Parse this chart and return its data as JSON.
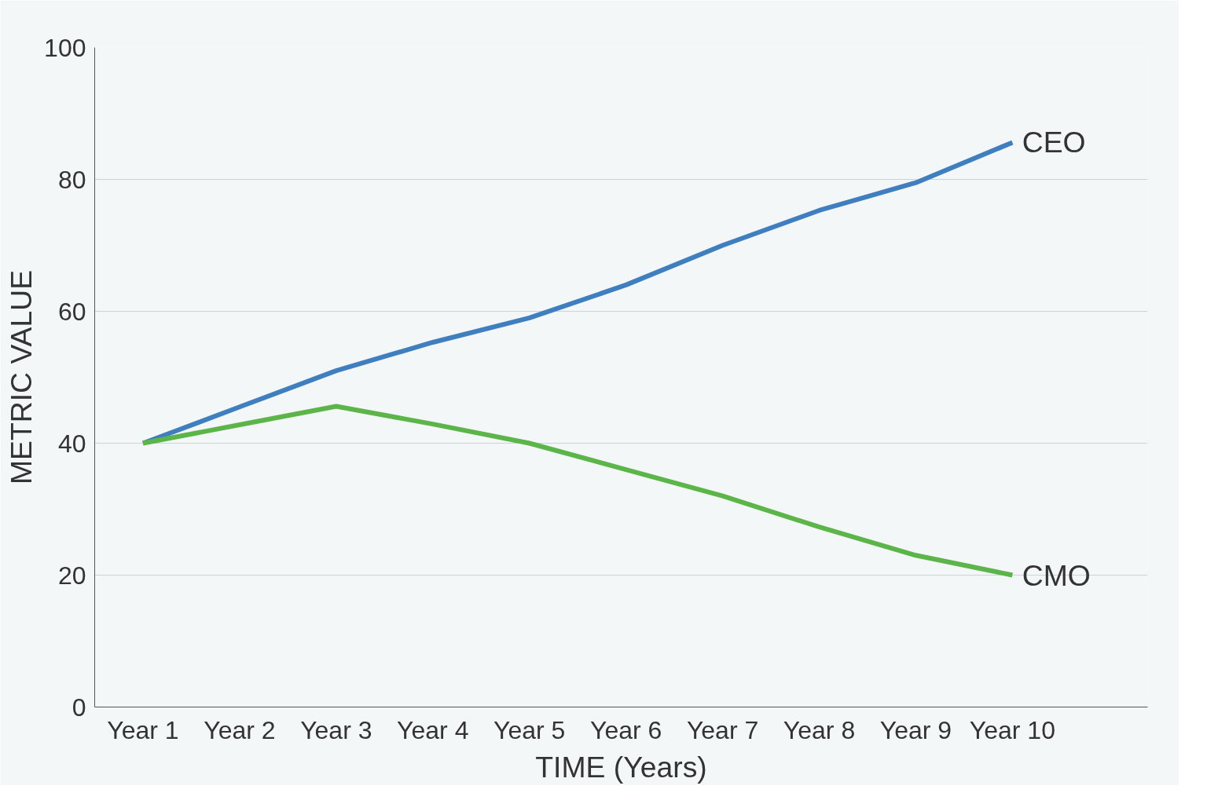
{
  "chart_data": {
    "type": "line",
    "xlabel": "TIME (Years)",
    "ylabel": "METRIC VALUE",
    "categories": [
      "Year 1",
      "Year 2",
      "Year 3",
      "Year 4",
      "Year 5",
      "Year 6",
      "Year 7",
      "Year 8",
      "Year 9",
      "Year 10"
    ],
    "series": [
      {
        "name": "CEO",
        "color": "#3f7fbf",
        "values": [
          40,
          45.5,
          51,
          55.3,
          59,
          64,
          70,
          75.3,
          79.5,
          85.6
        ]
      },
      {
        "name": "CMO",
        "color": "#5cb548",
        "values": [
          40,
          42.8,
          45.6,
          42.9,
          40,
          36,
          32,
          27.3,
          23,
          20
        ]
      }
    ],
    "ylim": [
      0,
      100
    ],
    "yticks": [
      0,
      20,
      40,
      60,
      80,
      100
    ],
    "grid": "y",
    "legend": false,
    "marker": "none",
    "line_style": "solid"
  }
}
